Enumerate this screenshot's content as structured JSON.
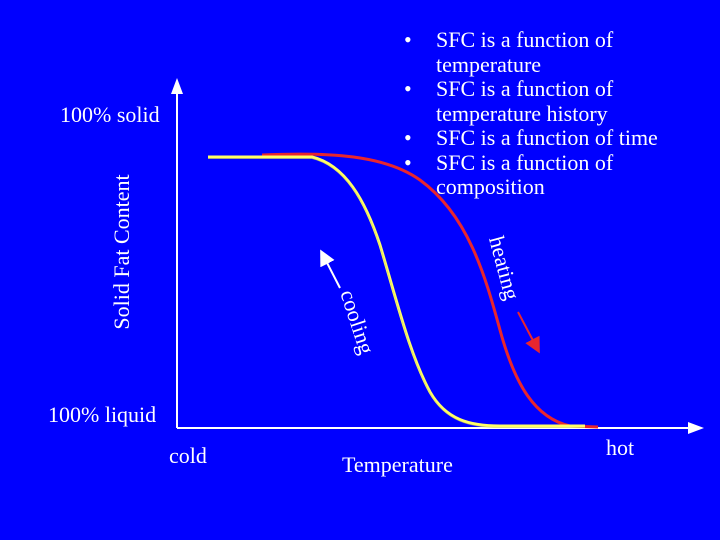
{
  "bullets": [
    {
      "text": "SFC is a function of temperature"
    },
    {
      "text": "SFC is a function of temperature history"
    },
    {
      "text": "SFC is a function of time"
    },
    {
      "text": "SFC is a function of composition"
    }
  ],
  "labels": {
    "solid": "100% solid",
    "liquid": "100% liquid",
    "y_axis": "Solid Fat Content",
    "cold": "cold",
    "hot": "hot",
    "x_axis": "Temperature",
    "cooling": "cooling",
    "heating": "heating"
  },
  "colors": {
    "background": "#0000ff",
    "axes": "#ffffff",
    "cooling_curve": "#ffff66",
    "heating_curve": "#e8262e",
    "cooling_arrow": "#ffffff",
    "heating_arrow": "#e8262e"
  }
}
